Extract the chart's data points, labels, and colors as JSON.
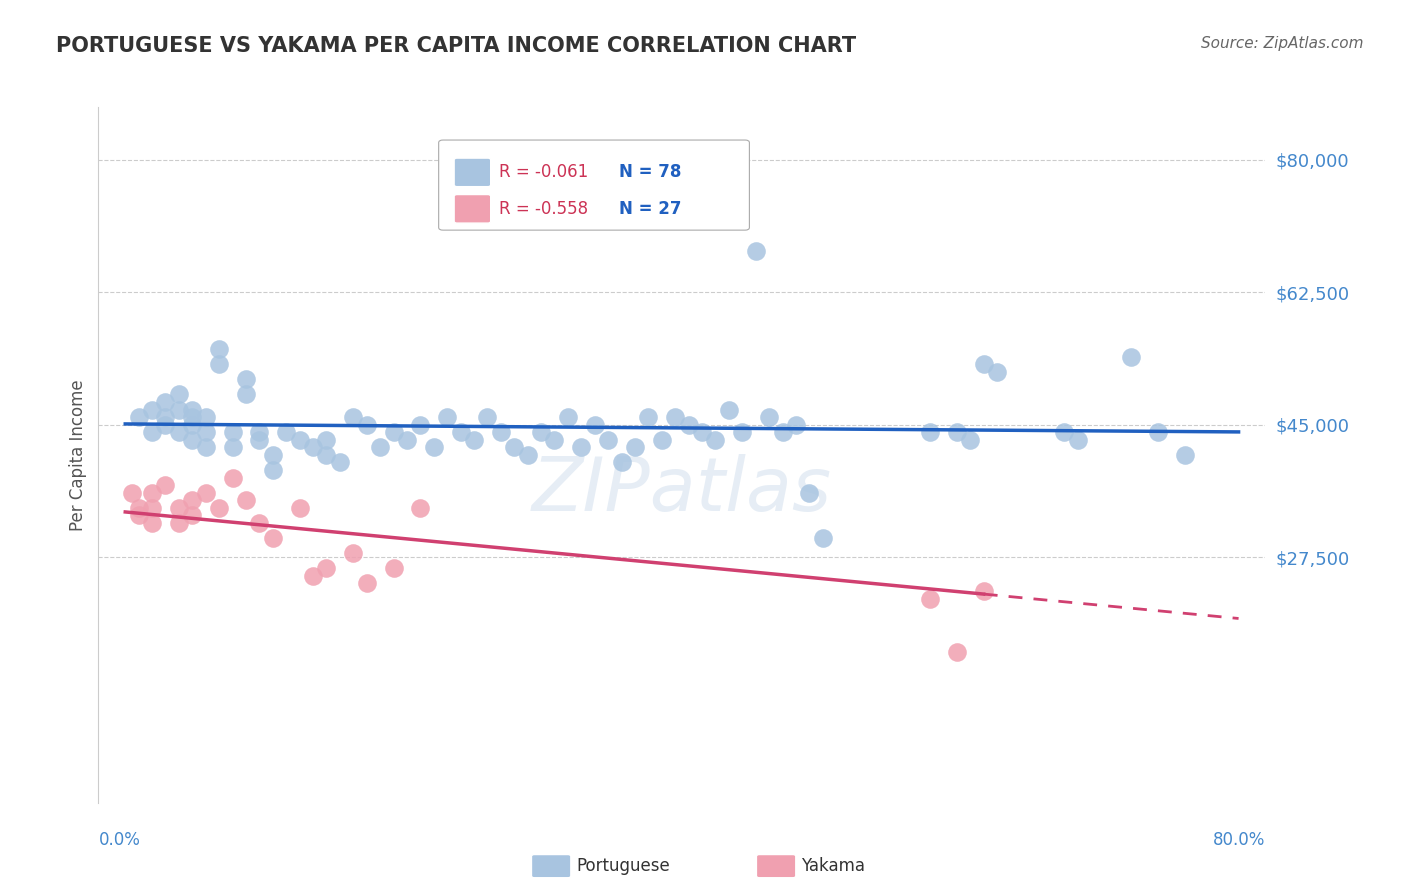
{
  "title": "PORTUGUESE VS YAKAMA PER CAPITA INCOME CORRELATION CHART",
  "source": "Source: ZipAtlas.com",
  "ylabel": "Per Capita Income",
  "watermark": "ZIPatlas",
  "legend_blue_r": "R = -0.061",
  "legend_blue_n": "N = 78",
  "legend_pink_r": "R = -0.558",
  "legend_pink_n": "N = 27",
  "legend_label_blue": "Portuguese",
  "legend_label_pink": "Yakama",
  "yticks": [
    27500,
    45000,
    62500,
    80000
  ],
  "ytick_labels": [
    "$27,500",
    "$45,000",
    "$62,500",
    "$80,000"
  ],
  "ylim": [
    -5000,
    87000
  ],
  "xlim": [
    -0.02,
    0.85
  ],
  "blue_color": "#a8c4e0",
  "pink_color": "#f0a0b0",
  "blue_line_color": "#2060c0",
  "pink_line_color": "#d04070",
  "background_color": "#ffffff",
  "grid_color": "#cccccc",
  "title_color": "#333333",
  "source_color": "#666666",
  "axis_label_color": "#4488cc",
  "portuguese_x": [
    0.01,
    0.02,
    0.02,
    0.03,
    0.03,
    0.03,
    0.04,
    0.04,
    0.04,
    0.05,
    0.05,
    0.05,
    0.05,
    0.06,
    0.06,
    0.06,
    0.07,
    0.07,
    0.08,
    0.08,
    0.09,
    0.09,
    0.1,
    0.1,
    0.11,
    0.11,
    0.12,
    0.13,
    0.14,
    0.15,
    0.15,
    0.16,
    0.17,
    0.18,
    0.19,
    0.2,
    0.21,
    0.22,
    0.23,
    0.24,
    0.25,
    0.26,
    0.27,
    0.28,
    0.29,
    0.3,
    0.31,
    0.32,
    0.33,
    0.34,
    0.35,
    0.36,
    0.37,
    0.38,
    0.39,
    0.4,
    0.41,
    0.42,
    0.43,
    0.44,
    0.45,
    0.46,
    0.47,
    0.48,
    0.49,
    0.5,
    0.51,
    0.52,
    0.6,
    0.62,
    0.63,
    0.64,
    0.65,
    0.7,
    0.71,
    0.75,
    0.77,
    0.79
  ],
  "portuguese_y": [
    46000,
    47000,
    44000,
    48000,
    46000,
    45000,
    49000,
    47000,
    44000,
    46000,
    47000,
    45000,
    43000,
    44000,
    42000,
    46000,
    55000,
    53000,
    44000,
    42000,
    51000,
    49000,
    44000,
    43000,
    41000,
    39000,
    44000,
    43000,
    42000,
    41000,
    43000,
    40000,
    46000,
    45000,
    42000,
    44000,
    43000,
    45000,
    42000,
    46000,
    44000,
    43000,
    46000,
    44000,
    42000,
    41000,
    44000,
    43000,
    46000,
    42000,
    45000,
    43000,
    40000,
    42000,
    46000,
    43000,
    46000,
    45000,
    44000,
    43000,
    47000,
    44000,
    68000,
    46000,
    44000,
    45000,
    36000,
    30000,
    44000,
    44000,
    43000,
    53000,
    52000,
    44000,
    43000,
    54000,
    44000,
    41000
  ],
  "yakama_x": [
    0.005,
    0.01,
    0.01,
    0.02,
    0.02,
    0.02,
    0.03,
    0.04,
    0.04,
    0.05,
    0.05,
    0.06,
    0.07,
    0.08,
    0.09,
    0.1,
    0.11,
    0.13,
    0.14,
    0.15,
    0.17,
    0.18,
    0.2,
    0.22,
    0.6,
    0.62,
    0.64
  ],
  "yakama_y": [
    36000,
    33000,
    34000,
    36000,
    34000,
    32000,
    37000,
    34000,
    32000,
    35000,
    33000,
    36000,
    34000,
    38000,
    35000,
    32000,
    30000,
    34000,
    25000,
    26000,
    28000,
    24000,
    26000,
    34000,
    22000,
    15000,
    23000
  ]
}
